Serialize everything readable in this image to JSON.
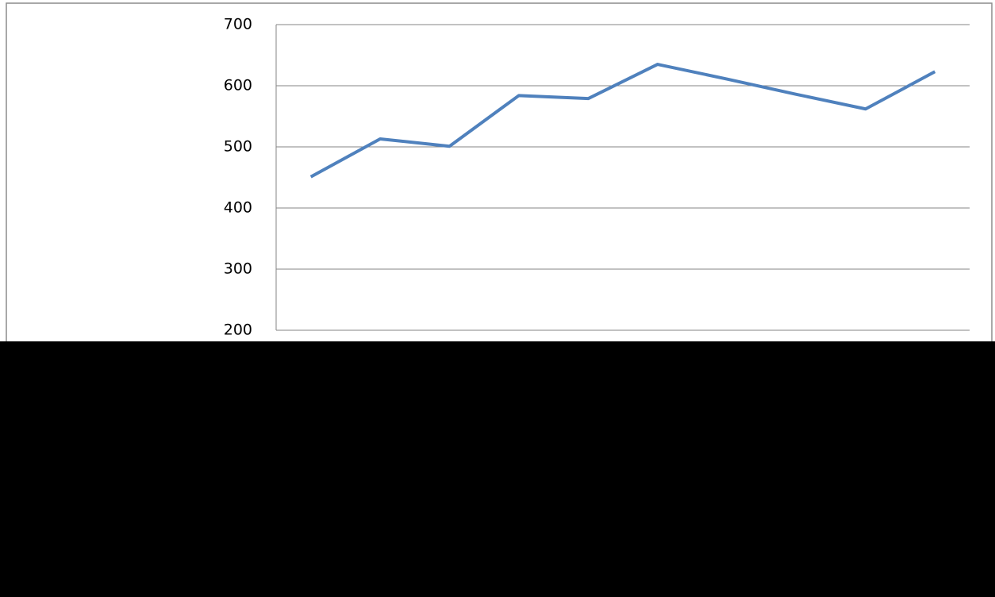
{
  "chart_data": {
    "type": "line",
    "categories": [
      null,
      null,
      null,
      null,
      null,
      null,
      null,
      null,
      null,
      null
    ],
    "series": [
      {
        "color": "#4f81bd",
        "values": [
          451,
          513,
          501,
          584,
          579,
          635,
          611,
          586,
          562,
          623
        ]
      }
    ],
    "ylim": [
      200,
      700
    ],
    "yticks": [
      200,
      300,
      400,
      500,
      600,
      700
    ],
    "grid": true
  }
}
